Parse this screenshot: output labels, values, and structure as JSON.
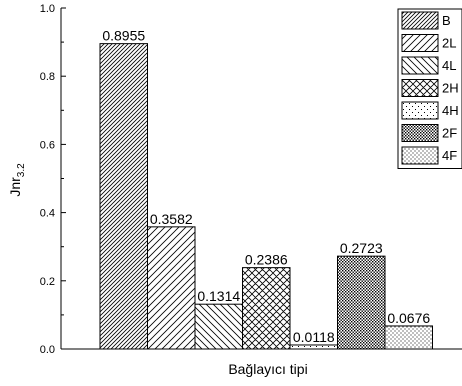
{
  "chart_data": {
    "type": "bar",
    "title": "",
    "xlabel": "Bağlayıcı tipi",
    "ylabel": "Jnr",
    "ylabel_subscript": "3.2",
    "ylim": [
      0,
      1.0
    ],
    "yticks": [
      "0.0",
      "0.2",
      "0.4",
      "0.6",
      "0.8",
      "1.0"
    ],
    "grid": false,
    "legend_position": "top-right",
    "categories": [
      "B",
      "2L",
      "4L",
      "2H",
      "4H",
      "2F",
      "4F"
    ],
    "values": [
      0.8955,
      0.3582,
      0.1314,
      0.2386,
      0.0118,
      0.2723,
      0.0676
    ],
    "labels": [
      "0.8955",
      "0.3582",
      "0.1314",
      "0.2386",
      "0.0118",
      "0.2723",
      "0.0676"
    ],
    "legend": [
      "B",
      "2L",
      "4L",
      "2H",
      "4H",
      "2F",
      "4F"
    ],
    "patterns": [
      "diag-dense",
      "diag-sparse",
      "back-diag",
      "crosshatch",
      "dots-sparse",
      "dots-dense",
      "dots-medium"
    ]
  }
}
